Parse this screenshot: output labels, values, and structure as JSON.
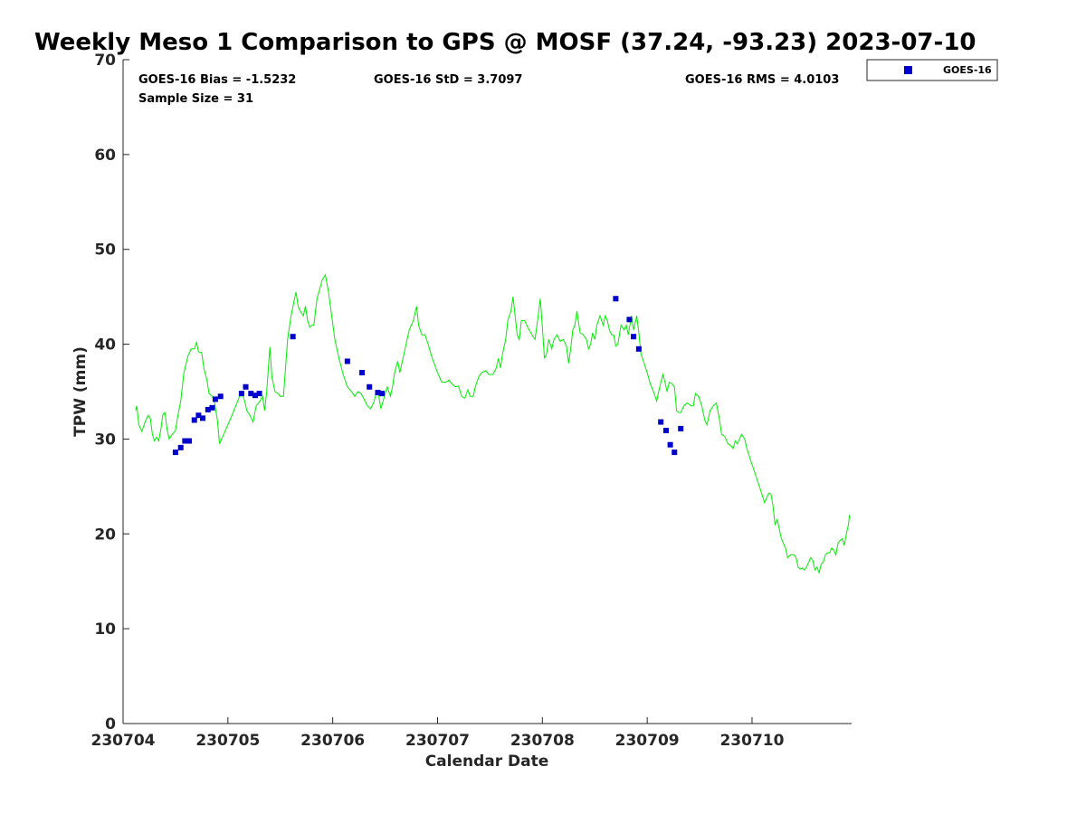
{
  "chart_data": {
    "type": "scatter",
    "title": "Weekly Meso 1 Comparison to GPS @ MOSF (37.24, -93.23) 2023-07-10",
    "xlabel": "Calendar Date",
    "ylabel": "TPW (mm)",
    "xlim": [
      0.0,
      6.95
    ],
    "ylim": [
      0,
      70
    ],
    "grid": false,
    "legend_position": "top-right",
    "x_tick_values": [
      0,
      1,
      2,
      3,
      4,
      5,
      6
    ],
    "x_tick_labels": [
      "230704",
      "230705",
      "230706",
      "230707",
      "230708",
      "230709",
      "230710"
    ],
    "y_ticks": [
      0,
      10,
      20,
      30,
      40,
      50,
      60,
      70
    ],
    "stats": {
      "bias": "GOES-16 Bias = -1.5232",
      "std": "GOES-16 StD = 3.7097",
      "rms": "GOES-16 RMS = 4.0103",
      "sample": "Sample Size = 31"
    },
    "series": [
      {
        "name": "GOES-16",
        "type": "scatter",
        "color": "#0000cc",
        "marker": "square",
        "points": [
          [
            0.5,
            28.6
          ],
          [
            0.55,
            29.1
          ],
          [
            0.59,
            29.8
          ],
          [
            0.63,
            29.8
          ],
          [
            0.68,
            32.0
          ],
          [
            0.72,
            32.5
          ],
          [
            0.76,
            32.2
          ],
          [
            0.81,
            33.1
          ],
          [
            0.85,
            33.3
          ],
          [
            0.88,
            34.2
          ],
          [
            0.93,
            34.5
          ],
          [
            1.13,
            34.8
          ],
          [
            1.17,
            35.5
          ],
          [
            1.22,
            34.8
          ],
          [
            1.26,
            34.6
          ],
          [
            1.3,
            34.8
          ],
          [
            1.62,
            40.8
          ],
          [
            2.14,
            38.2
          ],
          [
            2.28,
            37.0
          ],
          [
            2.35,
            35.5
          ],
          [
            2.43,
            34.9
          ],
          [
            2.47,
            34.8
          ],
          [
            4.7,
            44.8
          ],
          [
            4.83,
            42.6
          ],
          [
            4.87,
            40.8
          ],
          [
            4.92,
            39.5
          ],
          [
            5.13,
            31.8
          ],
          [
            5.18,
            30.9
          ],
          [
            5.22,
            29.4
          ],
          [
            5.26,
            28.6
          ],
          [
            5.32,
            31.1
          ]
        ]
      },
      {
        "name": "",
        "type": "line",
        "color": "#00ee00",
        "points": [
          [
            0.12,
            33.0
          ],
          [
            0.13,
            33.5
          ],
          [
            0.15,
            31.5
          ],
          [
            0.18,
            30.8
          ],
          [
            0.21,
            31.8
          ],
          [
            0.24,
            32.5
          ],
          [
            0.26,
            32.2
          ],
          [
            0.28,
            30.5
          ],
          [
            0.3,
            29.8
          ],
          [
            0.32,
            30.2
          ],
          [
            0.34,
            29.8
          ],
          [
            0.36,
            31.0
          ],
          [
            0.38,
            32.6
          ],
          [
            0.4,
            32.8
          ],
          [
            0.42,
            31.0
          ],
          [
            0.44,
            30.0
          ],
          [
            0.47,
            30.5
          ],
          [
            0.5,
            30.9
          ],
          [
            0.52,
            32.3
          ],
          [
            0.55,
            34.0
          ],
          [
            0.58,
            37.0
          ],
          [
            0.62,
            38.8
          ],
          [
            0.65,
            39.5
          ],
          [
            0.68,
            39.5
          ],
          [
            0.7,
            40.2
          ],
          [
            0.72,
            39.2
          ],
          [
            0.75,
            39.1
          ],
          [
            0.77,
            37.5
          ],
          [
            0.8,
            36.2
          ],
          [
            0.82,
            34.8
          ],
          [
            0.85,
            34.5
          ],
          [
            0.87,
            34.0
          ],
          [
            0.9,
            32.0
          ],
          [
            0.92,
            29.5
          ],
          [
            0.96,
            30.5
          ],
          [
            1.0,
            31.5
          ],
          [
            1.05,
            32.8
          ],
          [
            1.1,
            34.2
          ],
          [
            1.13,
            35.0
          ],
          [
            1.16,
            34.0
          ],
          [
            1.18,
            33.0
          ],
          [
            1.21,
            32.5
          ],
          [
            1.24,
            31.8
          ],
          [
            1.27,
            33.5
          ],
          [
            1.3,
            33.9
          ],
          [
            1.33,
            34.5
          ],
          [
            1.35,
            33.0
          ],
          [
            1.37,
            35.0
          ],
          [
            1.4,
            39.7
          ],
          [
            1.42,
            36.5
          ],
          [
            1.45,
            35.0
          ],
          [
            1.48,
            34.8
          ],
          [
            1.5,
            34.5
          ],
          [
            1.53,
            34.5
          ],
          [
            1.55,
            37.5
          ],
          [
            1.57,
            40.5
          ],
          [
            1.6,
            42.8
          ],
          [
            1.63,
            44.5
          ],
          [
            1.65,
            45.5
          ],
          [
            1.67,
            44.0
          ],
          [
            1.69,
            43.5
          ],
          [
            1.72,
            43.0
          ],
          [
            1.74,
            44.0
          ],
          [
            1.76,
            42.5
          ],
          [
            1.78,
            41.8
          ],
          [
            1.8,
            42.0
          ],
          [
            1.82,
            42.0
          ],
          [
            1.85,
            44.8
          ],
          [
            1.88,
            46.0
          ],
          [
            1.9,
            46.8
          ],
          [
            1.93,
            47.3
          ],
          [
            1.96,
            45.5
          ],
          [
            1.99,
            43.0
          ],
          [
            2.02,
            40.5
          ],
          [
            2.06,
            38.5
          ],
          [
            2.1,
            36.8
          ],
          [
            2.14,
            35.5
          ],
          [
            2.18,
            35.0
          ],
          [
            2.21,
            34.5
          ],
          [
            2.24,
            35.0
          ],
          [
            2.27,
            34.8
          ],
          [
            2.3,
            34.2
          ],
          [
            2.33,
            33.5
          ],
          [
            2.36,
            33.2
          ],
          [
            2.39,
            33.8
          ],
          [
            2.42,
            35.0
          ],
          [
            2.44,
            34.5
          ],
          [
            2.46,
            33.2
          ],
          [
            2.48,
            34.0
          ],
          [
            2.5,
            34.8
          ],
          [
            2.52,
            35.5
          ],
          [
            2.55,
            34.5
          ],
          [
            2.57,
            35.5
          ],
          [
            2.59,
            37.0
          ],
          [
            2.62,
            38.2
          ],
          [
            2.64,
            37.0
          ],
          [
            2.67,
            38.5
          ],
          [
            2.7,
            40.0
          ],
          [
            2.73,
            41.5
          ],
          [
            2.77,
            42.5
          ],
          [
            2.8,
            44.0
          ],
          [
            2.82,
            42.0
          ],
          [
            2.85,
            41.0
          ],
          [
            2.88,
            41.0
          ],
          [
            2.91,
            40.0
          ],
          [
            2.95,
            38.5
          ],
          [
            3.0,
            37.0
          ],
          [
            3.04,
            36.0
          ],
          [
            3.08,
            36.0
          ],
          [
            3.11,
            36.2
          ],
          [
            3.14,
            35.8
          ],
          [
            3.17,
            35.5
          ],
          [
            3.2,
            35.6
          ],
          [
            3.23,
            34.5
          ],
          [
            3.26,
            34.3
          ],
          [
            3.29,
            35.2
          ],
          [
            3.31,
            34.5
          ],
          [
            3.34,
            34.5
          ],
          [
            3.36,
            35.5
          ],
          [
            3.39,
            36.5
          ],
          [
            3.42,
            37.0
          ],
          [
            3.46,
            37.2
          ],
          [
            3.49,
            36.8
          ],
          [
            3.53,
            36.8
          ],
          [
            3.56,
            37.5
          ],
          [
            3.58,
            38.5
          ],
          [
            3.6,
            37.5
          ],
          [
            3.62,
            39.0
          ],
          [
            3.65,
            40.5
          ],
          [
            3.67,
            42.5
          ],
          [
            3.7,
            43.5
          ],
          [
            3.72,
            45.0
          ],
          [
            3.74,
            43.0
          ],
          [
            3.76,
            41.0
          ],
          [
            3.78,
            40.5
          ],
          [
            3.8,
            42.5
          ],
          [
            3.83,
            42.5
          ],
          [
            3.86,
            41.8
          ],
          [
            3.9,
            41.0
          ],
          [
            3.93,
            40.5
          ],
          [
            3.96,
            43.0
          ],
          [
            3.98,
            44.8
          ],
          [
            4.0,
            41.8
          ],
          [
            4.02,
            38.5
          ],
          [
            4.04,
            39.0
          ],
          [
            4.06,
            40.5
          ],
          [
            4.09,
            39.5
          ],
          [
            4.11,
            40.5
          ],
          [
            4.14,
            41.0
          ],
          [
            4.17,
            40.3
          ],
          [
            4.2,
            40.5
          ],
          [
            4.23,
            39.8
          ],
          [
            4.25,
            38.0
          ],
          [
            4.27,
            39.5
          ],
          [
            4.29,
            41.5
          ],
          [
            4.31,
            42.0
          ],
          [
            4.33,
            43.5
          ],
          [
            4.36,
            41.2
          ],
          [
            4.39,
            41.0
          ],
          [
            4.42,
            40.5
          ],
          [
            4.44,
            39.5
          ],
          [
            4.46,
            40.0
          ],
          [
            4.48,
            41.2
          ],
          [
            4.5,
            40.5
          ],
          [
            4.52,
            42.0
          ],
          [
            4.55,
            43.0
          ],
          [
            4.58,
            42.0
          ],
          [
            4.6,
            43.0
          ],
          [
            4.62,
            42.5
          ],
          [
            4.64,
            41.5
          ],
          [
            4.66,
            41.0
          ],
          [
            4.68,
            41.0
          ],
          [
            4.7,
            39.8
          ],
          [
            4.72,
            40.0
          ],
          [
            4.75,
            42.0
          ],
          [
            4.78,
            41.5
          ],
          [
            4.8,
            42.0
          ],
          [
            4.82,
            41.0
          ],
          [
            4.85,
            43.0
          ],
          [
            4.87,
            41.5
          ],
          [
            4.9,
            43.0
          ],
          [
            4.92,
            41.2
          ],
          [
            4.94,
            39.0
          ],
          [
            4.97,
            38.0
          ],
          [
            5.0,
            37.0
          ],
          [
            5.03,
            35.8
          ],
          [
            5.06,
            35.0
          ],
          [
            5.09,
            34.0
          ],
          [
            5.12,
            35.5
          ],
          [
            5.15,
            36.8
          ],
          [
            5.17,
            36.0
          ],
          [
            5.19,
            35.0
          ],
          [
            5.21,
            36.0
          ],
          [
            5.24,
            35.8
          ],
          [
            5.26,
            35.5
          ],
          [
            5.28,
            33.0
          ],
          [
            5.3,
            32.8
          ],
          [
            5.32,
            32.8
          ],
          [
            5.35,
            33.5
          ],
          [
            5.38,
            33.8
          ],
          [
            5.42,
            33.5
          ],
          [
            5.44,
            33.5
          ],
          [
            5.46,
            34.8
          ],
          [
            5.49,
            34.5
          ],
          [
            5.52,
            33.5
          ],
          [
            5.55,
            32.0
          ],
          [
            5.57,
            31.5
          ],
          [
            5.6,
            33.0
          ],
          [
            5.63,
            33.5
          ],
          [
            5.66,
            33.8
          ],
          [
            5.69,
            32.0
          ],
          [
            5.71,
            30.5
          ],
          [
            5.74,
            30.3
          ],
          [
            5.77,
            29.5
          ],
          [
            5.8,
            29.3
          ],
          [
            5.82,
            29.0
          ],
          [
            5.84,
            29.8
          ],
          [
            5.86,
            29.5
          ],
          [
            5.88,
            30.0
          ],
          [
            5.9,
            30.5
          ],
          [
            5.93,
            30.0
          ],
          [
            5.95,
            29.0
          ],
          [
            5.98,
            28.0
          ],
          [
            6.01,
            27.0
          ],
          [
            6.04,
            26.0
          ],
          [
            6.07,
            25.0
          ],
          [
            6.1,
            24.0
          ],
          [
            6.12,
            23.3
          ],
          [
            6.14,
            23.8
          ],
          [
            6.16,
            24.3
          ],
          [
            6.18,
            24.2
          ],
          [
            6.2,
            23.0
          ],
          [
            6.22,
            21.0
          ],
          [
            6.24,
            21.5
          ],
          [
            6.26,
            20.5
          ],
          [
            6.28,
            19.5
          ],
          [
            6.3,
            19.0
          ],
          [
            6.32,
            18.5
          ],
          [
            6.34,
            17.5
          ],
          [
            6.37,
            17.8
          ],
          [
            6.4,
            17.8
          ],
          [
            6.42,
            17.5
          ],
          [
            6.44,
            16.5
          ],
          [
            6.46,
            16.3
          ],
          [
            6.48,
            16.4
          ],
          [
            6.5,
            16.2
          ],
          [
            6.52,
            16.5
          ],
          [
            6.54,
            17.0
          ],
          [
            6.56,
            17.5
          ],
          [
            6.58,
            17.2
          ],
          [
            6.6,
            16.2
          ],
          [
            6.62,
            16.5
          ],
          [
            6.64,
            15.9
          ],
          [
            6.66,
            16.8
          ],
          [
            6.68,
            17.0
          ],
          [
            6.7,
            17.8
          ],
          [
            6.72,
            18.0
          ],
          [
            6.74,
            18.0
          ],
          [
            6.76,
            18.5
          ],
          [
            6.78,
            18.3
          ],
          [
            6.8,
            17.8
          ],
          [
            6.82,
            19.0
          ],
          [
            6.84,
            19.3
          ],
          [
            6.86,
            19.5
          ],
          [
            6.88,
            18.8
          ],
          [
            6.9,
            20.0
          ],
          [
            6.92,
            21.0
          ],
          [
            6.93,
            22.0
          ]
        ]
      }
    ]
  }
}
